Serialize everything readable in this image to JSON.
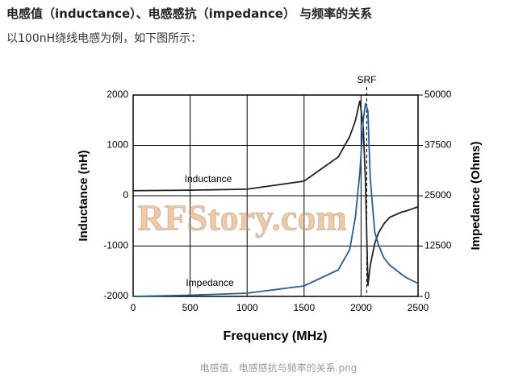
{
  "heading": "电感值（inductance）、电感感抗（impedance） 与频率的关系",
  "intro": "以100nH绕线电感为例，如下图所示：",
  "caption": "电感值、电感感抗与频率的关系.png",
  "chart_data": {
    "type": "line",
    "xlabel": "Frequency (MHz)",
    "ylabel": "Inductance (nH)",
    "y2label": "Impedance (Ohms)",
    "watermark": "RFStory.com",
    "srf": {
      "label": "SRF",
      "x": 2050
    },
    "xlim": [
      0,
      2500
    ],
    "xticks": [
      0,
      500,
      1000,
      1500,
      2000,
      2500
    ],
    "ylim": [
      -2000,
      2000
    ],
    "yticks": [
      -2000,
      -1000,
      0,
      1000,
      2000
    ],
    "y2lim": [
      0,
      50000
    ],
    "y2ticks": [
      0,
      12500,
      25000,
      37500,
      50000
    ],
    "grid": true,
    "x": [
      0,
      500,
      1000,
      1500,
      1800,
      1900,
      1950,
      1990,
      2020,
      2040,
      2060,
      2080,
      2120,
      2150,
      2200,
      2250,
      2350,
      2400,
      2500
    ],
    "series": [
      {
        "name": "Inductance",
        "color": "#222222",
        "axis": "y",
        "values": [
          100,
          110,
          130,
          290,
          770,
          1170,
          1490,
          1890,
          1330,
          200,
          -1790,
          -1390,
          -950,
          -750,
          -560,
          -430,
          -330,
          -300,
          -220
        ]
      },
      {
        "name": "Impedance",
        "color": "#1f5f9f",
        "axis": "y2",
        "values": [
          0,
          300,
          800,
          2600,
          6600,
          11600,
          19600,
          31000,
          44000,
          48000,
          46000,
          29600,
          16000,
          13000,
          9600,
          7800,
          5600,
          4600,
          3200
        ]
      }
    ]
  }
}
